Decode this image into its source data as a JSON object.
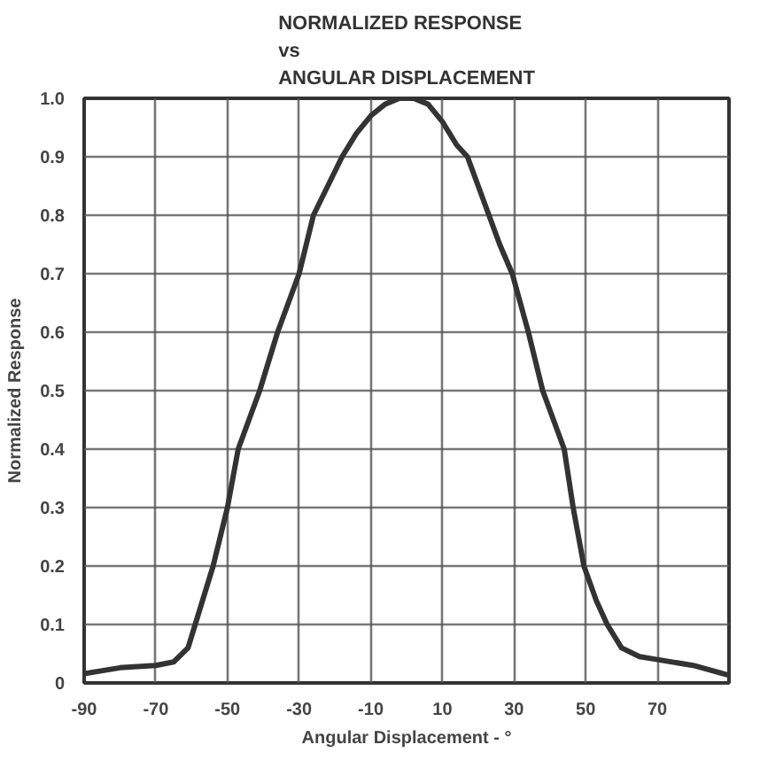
{
  "chart_data": {
    "type": "line",
    "title": "NORMALIZED RESPONSE\nvs\nANGULAR DISPLACEMENT",
    "xlabel": "Angular Displacement - °",
    "ylabel": "Normalized Response",
    "x": [
      -90,
      -80,
      -70,
      -65,
      -61,
      -59,
      -54,
      -50,
      -47,
      -41,
      -36,
      -30,
      -26,
      -22,
      -18,
      -14,
      -10,
      -6,
      -2,
      2,
      6,
      10,
      14,
      17,
      20,
      23,
      26,
      29.5,
      34,
      38,
      44,
      46.5,
      49.5,
      53,
      56,
      60,
      65,
      70,
      80,
      90
    ],
    "series": [
      {
        "color": "#333333",
        "values": [
          0.016,
          0.026,
          0.03,
          0.036,
          0.06,
          0.1,
          0.2,
          0.3,
          0.4,
          0.5,
          0.6,
          0.7,
          0.8,
          0.85,
          0.9,
          0.94,
          0.97,
          0.99,
          1.0,
          1.0,
          0.99,
          0.96,
          0.92,
          0.9,
          0.85,
          0.8,
          0.75,
          0.7,
          0.6,
          0.5,
          0.4,
          0.3,
          0.2,
          0.14,
          0.1,
          0.06,
          0.045,
          0.04,
          0.03,
          0.013
        ]
      }
    ],
    "xlim": [
      -90,
      90
    ],
    "ylim": [
      0,
      1.0
    ],
    "xticks": [
      -90,
      -70,
      -50,
      -30,
      -10,
      10,
      30,
      50,
      70,
      {
        "value": 90,
        "label": null
      }
    ],
    "yticks": [
      {
        "value": 0,
        "label": "0"
      },
      0.1,
      0.2,
      0.3,
      0.4,
      0.5,
      0.6,
      0.7,
      0.8,
      0.9,
      {
        "value": 1.0,
        "label": "1.0"
      }
    ],
    "grid": true,
    "line_style": "solid"
  }
}
